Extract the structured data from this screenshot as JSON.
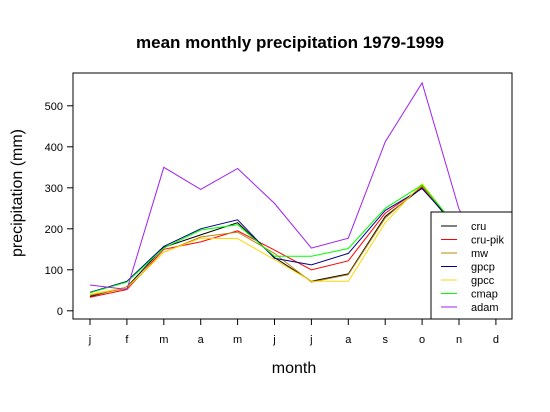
{
  "chart_data": {
    "type": "line",
    "title": "mean monthly precipitation 1979-1999",
    "xlabel": "month",
    "ylabel": "precipitation (mm)",
    "categories": [
      "j",
      "f",
      "m",
      "a",
      "m",
      "j",
      "j",
      "a",
      "s",
      "o",
      "n",
      "d"
    ],
    "yticks": [
      0,
      100,
      200,
      300,
      400,
      500
    ],
    "ylim": [
      -20,
      580
    ],
    "grid": false,
    "legend_position": "bottom-right",
    "series": [
      {
        "name": "cru",
        "color": "#000000",
        "values": [
          35,
          58,
          155,
          185,
          215,
          130,
          72,
          90,
          230,
          300,
          195,
          80
        ]
      },
      {
        "name": "cru-pik",
        "color": "#ff0000",
        "values": [
          33,
          52,
          150,
          168,
          195,
          148,
          100,
          122,
          238,
          302,
          198,
          82
        ]
      },
      {
        "name": "mw",
        "color": "#b8860b",
        "values": [
          38,
          55,
          143,
          180,
          192,
          140,
          70,
          88,
          226,
          305,
          196,
          78
        ]
      },
      {
        "name": "gpcp",
        "color": "#00008b",
        "values": [
          45,
          72,
          157,
          200,
          222,
          128,
          112,
          140,
          245,
          298,
          200,
          82
        ]
      },
      {
        "name": "gpcc",
        "color": "#ffd700",
        "values": [
          40,
          57,
          143,
          177,
          176,
          125,
          72,
          72,
          215,
          310,
          195,
          75
        ]
      },
      {
        "name": "cmap",
        "color": "#00ff00",
        "values": [
          44,
          70,
          153,
          197,
          210,
          133,
          133,
          152,
          250,
          307,
          198,
          80
        ]
      },
      {
        "name": "adam",
        "color": "#a020f0",
        "values": [
          63,
          52,
          350,
          296,
          347,
          262,
          153,
          177,
          412,
          556,
          248,
          100
        ]
      }
    ]
  }
}
